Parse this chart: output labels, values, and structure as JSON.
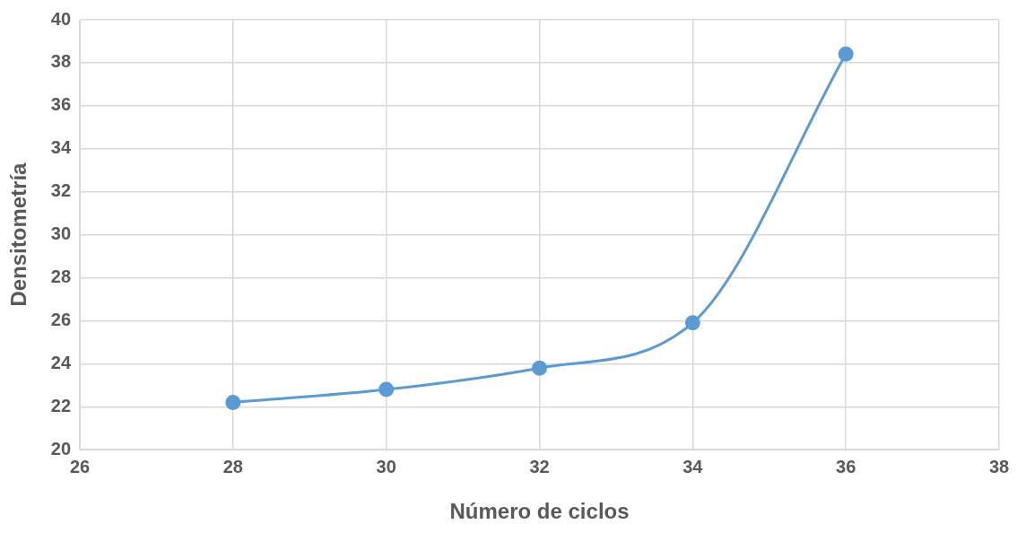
{
  "chart_data": {
    "type": "line",
    "xlabel": "Número de ciclos",
    "ylabel": "Densitometría",
    "x": [
      28,
      30,
      32,
      34,
      36
    ],
    "series": [
      {
        "color": "#5b9bd5",
        "values": [
          22.2,
          22.8,
          23.8,
          25.9,
          38.4
        ]
      }
    ],
    "xlim": [
      26,
      38
    ],
    "xticks": [
      26,
      28,
      30,
      32,
      34,
      36,
      38
    ],
    "ylim": [
      20,
      40
    ],
    "yticks": [
      20,
      22,
      24,
      26,
      28,
      30,
      32,
      34,
      36,
      38,
      40
    ],
    "grid": true,
    "legend": false,
    "marker": "circle",
    "line_style": "solid"
  }
}
